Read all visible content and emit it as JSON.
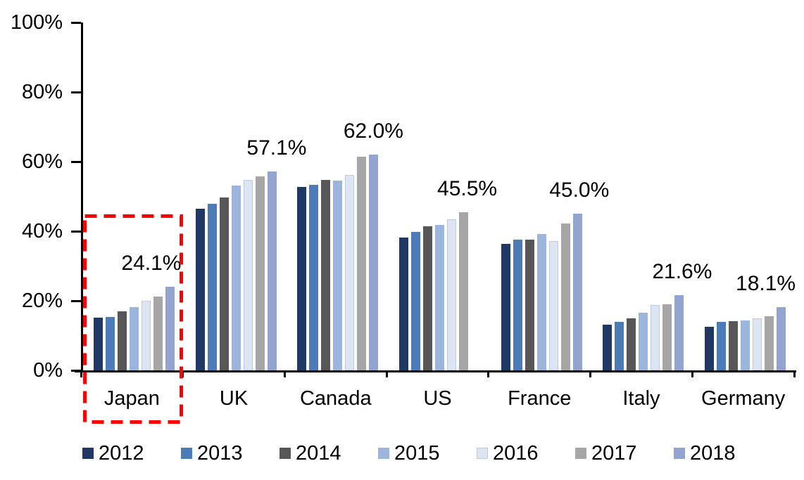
{
  "chart_data": {
    "type": "bar",
    "title": "",
    "categories": [
      "Japan",
      "UK",
      "Canada",
      "US",
      "France",
      "Italy",
      "Germany"
    ],
    "series": [
      {
        "name": "2012",
        "color": "#1F3864",
        "values": [
          15.1,
          46.4,
          52.8,
          38.2,
          36.4,
          13.2,
          12.5
        ]
      },
      {
        "name": "2013",
        "color": "#4C7BB8",
        "values": [
          15.3,
          47.8,
          53.3,
          39.9,
          37.6,
          14.0,
          13.9
        ]
      },
      {
        "name": "2014",
        "color": "#575757",
        "values": [
          16.9,
          49.8,
          54.7,
          41.4,
          37.5,
          15.0,
          14.2
        ]
      },
      {
        "name": "2015",
        "color": "#9BB5DC",
        "values": [
          18.2,
          53.2,
          54.5,
          41.9,
          39.1,
          16.6,
          14.4
        ]
      },
      {
        "name": "2016",
        "color": "#DCE5F1",
        "border": "#BFCBDC",
        "values": [
          20.0,
          54.7,
          56.1,
          43.4,
          37.2,
          18.8,
          15.0
        ]
      },
      {
        "name": "2017",
        "color": "#A6A6A6",
        "values": [
          21.3,
          55.7,
          61.5,
          45.5,
          42.2,
          18.9,
          15.6
        ]
      },
      {
        "name": "2018",
        "color": "#93A5CE",
        "values": [
          24.1,
          57.1,
          62.0,
          null,
          45.0,
          21.6,
          18.1
        ]
      }
    ],
    "data_labels": [
      "24.1%",
      "57.1%",
      "62.0%",
      "45.5%",
      "45.0%",
      "21.6%",
      "18.1%"
    ],
    "y_axis": {
      "min": 0,
      "max": 100,
      "tick_values": [
        0,
        20,
        40,
        60,
        80,
        100
      ],
      "tick_labels": [
        "0%",
        "20%",
        "40%",
        "60%",
        "80%",
        "100%"
      ]
    },
    "legend": [
      "2012",
      "2013",
      "2014",
      "2015",
      "2016",
      "2017",
      "2018"
    ],
    "legend_position": "bottom",
    "grid": false,
    "annotation": {
      "highlighted_category": "Japan",
      "highlight_box_color": "#FF0000"
    }
  }
}
